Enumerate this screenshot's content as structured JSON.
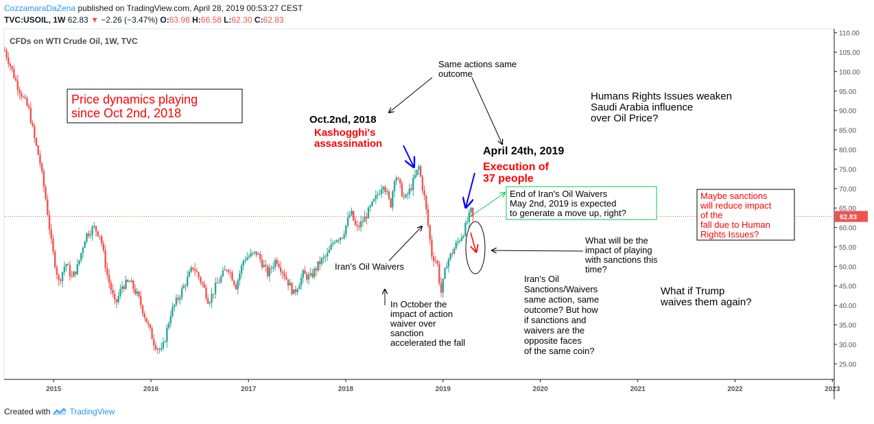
{
  "header": {
    "author": "CozzamaraDaZena",
    "published": "published on TradingView.com, April 28, 2019 00:53:27 CEST",
    "symbol": "TVC:USOIL, 1W",
    "last": "62.83",
    "arrow": "▼",
    "change": "−2.26 (−3.47%)",
    "o_label": "O:",
    "o_val": "63.98",
    "h_label": "H:",
    "h_val": "66.58",
    "l_label": "L:",
    "l_val": "62.30",
    "c_label": "C:",
    "c_val": "62.83"
  },
  "footer": {
    "created_with": "Created with",
    "brand": "TradingView",
    "logo_icon": "tradingview-logo-icon"
  },
  "colors": {
    "up": "#26a69a",
    "down": "#ef5350",
    "price_line": "#ef5350",
    "annotation_red": "#ff0000",
    "annotation_blue": "#0000ff",
    "annotation_green": "#00c853",
    "axis_text": "#50535e",
    "grid": "#f0f3fa"
  },
  "chart_data": {
    "type": "candlestick",
    "title": "CFDs on WTI Crude Oil, 1W, TVC",
    "interval": "1W",
    "ylim": [
      21,
      111
    ],
    "y_ticks": [
      25,
      30,
      35,
      40,
      45,
      50,
      55,
      60,
      65,
      70,
      75,
      80,
      85,
      90,
      95,
      100,
      105,
      110
    ],
    "y_tick_labels": [
      "25.00",
      "30.00",
      "35.00",
      "40.00",
      "45.00",
      "50.00",
      "55.00",
      "60.00",
      "65.00",
      "70.00",
      "75.00",
      "80.00",
      "85.00",
      "90.00",
      "95.00",
      "100.00",
      "105.00",
      "110.00"
    ],
    "x_start": "2014-06-29",
    "x_end": "2023-01-08",
    "x_ticks": [
      "2015-01-01",
      "2016-01-01",
      "2017-01-01",
      "2018-01-01",
      "2019-01-01",
      "2020-01-01",
      "2021-01-01",
      "2022-01-01",
      "2023-01-01"
    ],
    "x_tick_labels": [
      "2015",
      "2016",
      "2017",
      "2018",
      "2019",
      "2020",
      "2021",
      "2022",
      "2023"
    ],
    "grid": false,
    "last_price": 62.83,
    "last_price_label": "62.83",
    "price_path": [
      [
        "2014-07-01",
        105.5
      ],
      [
        "2014-07-20",
        102
      ],
      [
        "2014-08-15",
        97
      ],
      [
        "2014-09-10",
        93
      ],
      [
        "2014-10-01",
        90
      ],
      [
        "2014-10-20",
        83
      ],
      [
        "2014-11-10",
        77
      ],
      [
        "2014-12-05",
        66
      ],
      [
        "2014-12-25",
        55
      ],
      [
        "2015-01-20",
        46
      ],
      [
        "2015-02-15",
        51
      ],
      [
        "2015-03-10",
        47
      ],
      [
        "2015-04-01",
        50
      ],
      [
        "2015-05-01",
        58
      ],
      [
        "2015-06-01",
        60
      ],
      [
        "2015-06-25",
        58
      ],
      [
        "2015-07-20",
        48
      ],
      [
        "2015-08-20",
        40
      ],
      [
        "2015-09-15",
        45
      ],
      [
        "2015-10-15",
        46
      ],
      [
        "2015-11-15",
        42
      ],
      [
        "2015-12-15",
        36
      ],
      [
        "2016-01-15",
        30
      ],
      [
        "2016-02-11",
        28
      ],
      [
        "2016-03-15",
        38
      ],
      [
        "2016-04-20",
        43
      ],
      [
        "2016-06-08",
        50
      ],
      [
        "2016-07-15",
        45
      ],
      [
        "2016-08-05",
        41
      ],
      [
        "2016-09-01",
        45
      ],
      [
        "2016-10-15",
        50
      ],
      [
        "2016-11-15",
        45
      ],
      [
        "2016-12-15",
        52
      ],
      [
        "2017-02-01",
        53.5
      ],
      [
        "2017-03-15",
        48
      ],
      [
        "2017-04-15",
        52
      ],
      [
        "2017-05-15",
        48
      ],
      [
        "2017-06-20",
        43
      ],
      [
        "2017-07-25",
        48
      ],
      [
        "2017-08-20",
        47
      ],
      [
        "2017-09-25",
        51
      ],
      [
        "2017-10-25",
        53
      ],
      [
        "2017-11-20",
        57
      ],
      [
        "2017-12-20",
        58
      ],
      [
        "2018-01-20",
        64
      ],
      [
        "2018-02-10",
        59.5
      ],
      [
        "2018-03-10",
        62
      ],
      [
        "2018-04-20",
        67
      ],
      [
        "2018-05-22",
        71.5
      ],
      [
        "2018-06-18",
        65.5
      ],
      [
        "2018-07-05",
        74
      ],
      [
        "2018-08-10",
        67
      ],
      [
        "2018-09-01",
        70
      ],
      [
        "2018-10-02",
        75.5
      ],
      [
        "2018-10-25",
        67
      ],
      [
        "2018-11-20",
        53
      ],
      [
        "2018-12-10",
        51
      ],
      [
        "2018-12-24",
        43
      ],
      [
        "2019-01-15",
        51
      ],
      [
        "2019-02-15",
        55
      ],
      [
        "2019-03-20",
        59
      ],
      [
        "2019-04-15",
        64
      ],
      [
        "2019-04-24",
        65.5
      ],
      [
        "2019-04-28",
        62.83
      ]
    ]
  },
  "annotations": {
    "price_dynamics": "Price dynamics playing\nsince Oct 2nd, 2018",
    "oct_date": "Oct.2nd, 2018",
    "kashogghi": "Kashogghi's\nassassination",
    "same_actions": "Same actions same\noutcome",
    "human_rights": "Humans Rights Issues weaken\nSaudi Arabia influence\nover Oil Price?",
    "april_date": "April 24th, 2019",
    "execution": "Execution of\n37 people",
    "end_waivers": "End of Iran's Oil Waivers\nMay 2nd, 2019 is expected\nto generate a move up, right?",
    "maybe_sanctions": "Maybe sanctions\nwill reduce impact\nof the\nfall due to Human\nRights Issues?",
    "what_will_be": "What will be the\nimpact of playing\nwith sanctions this\ntime?",
    "iran_waivers": "Iran's Oil Waivers",
    "in_october": "In October the\nimpact of action\nwaiver over\nsanction\naccelerated the fall",
    "iran_sanctions": "Iran's Oil\nSanctions/Waivers\nsame action, same\noutcome? But how\nif sanctions and\nwaivers are the\nopposite faces\nof the same coin?",
    "what_if_trump": "What if Trump\nwaives them again?"
  }
}
